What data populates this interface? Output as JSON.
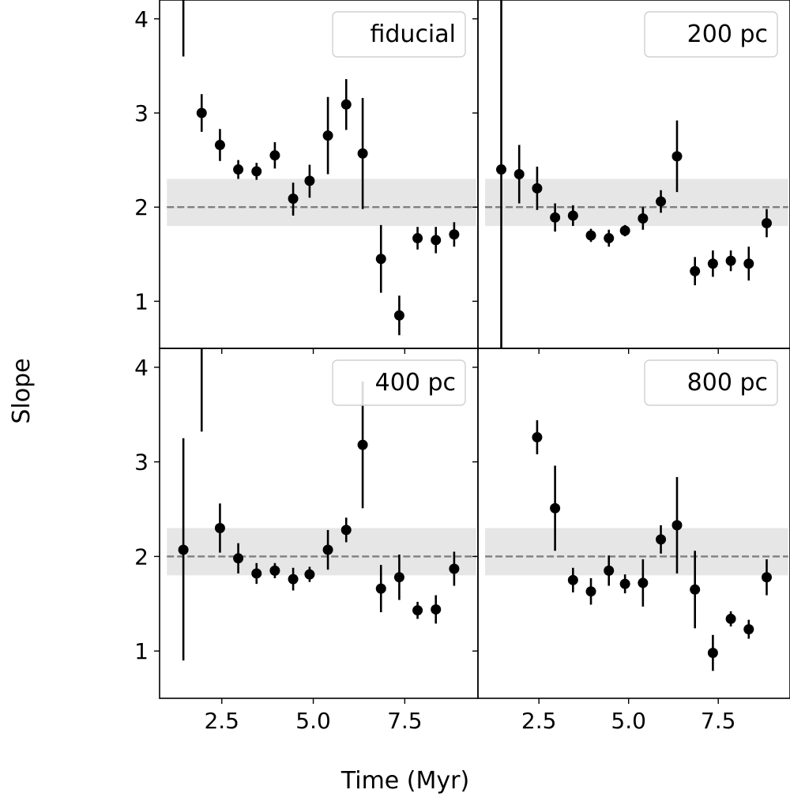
{
  "figure": {
    "ylabel": "Slope",
    "xlabel": "Time (Myr)"
  },
  "chart_data": [
    {
      "type": "scatter",
      "legend": "fiducial",
      "legend_position": "top-right",
      "xlim": [
        0.8,
        9.5
      ],
      "ylim": [
        0.5,
        4.2
      ],
      "xticks": [
        2.5,
        5.0,
        7.5
      ],
      "xtick_labels": [
        "2.5",
        "5.0",
        "7.5"
      ],
      "yticks": [
        1,
        2,
        3,
        4
      ],
      "ytick_labels": [
        "1",
        "2",
        "3",
        "4"
      ],
      "reference_line": 2.0,
      "band": [
        1.8,
        2.3
      ],
      "points": [
        {
          "x": 1.45,
          "y": 4.6,
          "ylo": 3.6,
          "yhi": 5.6
        },
        {
          "x": 1.95,
          "y": 3.0,
          "ylo": 2.8,
          "yhi": 3.2
        },
        {
          "x": 2.45,
          "y": 2.66,
          "ylo": 2.49,
          "yhi": 2.83
        },
        {
          "x": 2.95,
          "y": 2.4,
          "ylo": 2.3,
          "yhi": 2.5
        },
        {
          "x": 3.45,
          "y": 2.38,
          "ylo": 2.29,
          "yhi": 2.47
        },
        {
          "x": 3.95,
          "y": 2.55,
          "ylo": 2.41,
          "yhi": 2.69
        },
        {
          "x": 4.45,
          "y": 2.09,
          "ylo": 1.91,
          "yhi": 2.26
        },
        {
          "x": 4.9,
          "y": 2.28,
          "ylo": 2.1,
          "yhi": 2.45
        },
        {
          "x": 5.4,
          "y": 2.76,
          "ylo": 2.35,
          "yhi": 3.17
        },
        {
          "x": 5.9,
          "y": 3.09,
          "ylo": 2.82,
          "yhi": 3.36
        },
        {
          "x": 6.35,
          "y": 2.57,
          "ylo": 1.98,
          "yhi": 3.16
        },
        {
          "x": 6.85,
          "y": 1.45,
          "ylo": 1.09,
          "yhi": 1.81
        },
        {
          "x": 7.35,
          "y": 0.85,
          "ylo": 0.64,
          "yhi": 1.06
        },
        {
          "x": 7.85,
          "y": 1.67,
          "ylo": 1.55,
          "yhi": 1.79
        },
        {
          "x": 8.35,
          "y": 1.65,
          "ylo": 1.51,
          "yhi": 1.79
        },
        {
          "x": 8.85,
          "y": 1.71,
          "ylo": 1.58,
          "yhi": 1.84
        }
      ]
    },
    {
      "type": "scatter",
      "legend": "200 pc",
      "legend_position": "top-right",
      "xlim": [
        0.8,
        9.5
      ],
      "ylim": [
        0.5,
        4.2
      ],
      "xticks": [
        2.5,
        5.0,
        7.5
      ],
      "xtick_labels": [
        "2.5",
        "5.0",
        "7.5"
      ],
      "yticks": [
        1,
        2,
        3,
        4
      ],
      "ytick_labels": [],
      "reference_line": 2.0,
      "band": [
        1.8,
        2.3
      ],
      "points": [
        {
          "x": 1.45,
          "y": 2.4,
          "ylo": -1.0,
          "yhi": 6.0
        },
        {
          "x": 1.95,
          "y": 2.35,
          "ylo": 2.04,
          "yhi": 2.66
        },
        {
          "x": 2.45,
          "y": 2.2,
          "ylo": 1.97,
          "yhi": 2.43
        },
        {
          "x": 2.95,
          "y": 1.89,
          "ylo": 1.74,
          "yhi": 2.04
        },
        {
          "x": 3.45,
          "y": 1.91,
          "ylo": 1.8,
          "yhi": 2.02
        },
        {
          "x": 3.95,
          "y": 1.7,
          "ylo": 1.63,
          "yhi": 1.77
        },
        {
          "x": 4.45,
          "y": 1.67,
          "ylo": 1.58,
          "yhi": 1.76
        },
        {
          "x": 4.9,
          "y": 1.75,
          "ylo": 1.69,
          "yhi": 1.81
        },
        {
          "x": 5.4,
          "y": 1.88,
          "ylo": 1.76,
          "yhi": 2.0
        },
        {
          "x": 5.9,
          "y": 2.06,
          "ylo": 1.94,
          "yhi": 2.18
        },
        {
          "x": 6.35,
          "y": 2.54,
          "ylo": 2.16,
          "yhi": 2.92
        },
        {
          "x": 6.85,
          "y": 1.32,
          "ylo": 1.17,
          "yhi": 1.47
        },
        {
          "x": 7.35,
          "y": 1.4,
          "ylo": 1.26,
          "yhi": 1.54
        },
        {
          "x": 7.85,
          "y": 1.43,
          "ylo": 1.32,
          "yhi": 1.54
        },
        {
          "x": 8.35,
          "y": 1.4,
          "ylo": 1.22,
          "yhi": 1.58
        },
        {
          "x": 8.85,
          "y": 1.83,
          "ylo": 1.68,
          "yhi": 1.98
        }
      ]
    },
    {
      "type": "scatter",
      "legend": "400 pc",
      "legend_position": "top-right",
      "xlim": [
        0.8,
        9.5
      ],
      "ylim": [
        0.5,
        4.2
      ],
      "xticks": [
        2.5,
        5.0,
        7.5
      ],
      "xtick_labels": [
        "2.5",
        "5.0",
        "7.5"
      ],
      "yticks": [
        1,
        2,
        3,
        4
      ],
      "ytick_labels": [
        "1",
        "2",
        "3",
        "4"
      ],
      "reference_line": 2.0,
      "band": [
        1.8,
        2.3
      ],
      "points": [
        {
          "x": 1.45,
          "y": 2.07,
          "ylo": 0.9,
          "yhi": 3.25
        },
        {
          "x": 1.95,
          "y": 4.6,
          "ylo": 3.32,
          "yhi": 5.6
        },
        {
          "x": 2.45,
          "y": 2.3,
          "ylo": 2.04,
          "yhi": 2.56
        },
        {
          "x": 2.95,
          "y": 1.98,
          "ylo": 1.82,
          "yhi": 2.14
        },
        {
          "x": 3.45,
          "y": 1.82,
          "ylo": 1.71,
          "yhi": 1.93
        },
        {
          "x": 3.95,
          "y": 1.85,
          "ylo": 1.77,
          "yhi": 1.93
        },
        {
          "x": 4.45,
          "y": 1.76,
          "ylo": 1.64,
          "yhi": 1.88
        },
        {
          "x": 4.9,
          "y": 1.81,
          "ylo": 1.73,
          "yhi": 1.89
        },
        {
          "x": 5.4,
          "y": 2.07,
          "ylo": 1.86,
          "yhi": 2.28
        },
        {
          "x": 5.9,
          "y": 2.28,
          "ylo": 2.15,
          "yhi": 2.41
        },
        {
          "x": 6.35,
          "y": 3.18,
          "ylo": 2.51,
          "yhi": 3.85
        },
        {
          "x": 6.85,
          "y": 1.66,
          "ylo": 1.41,
          "yhi": 1.91
        },
        {
          "x": 7.35,
          "y": 1.78,
          "ylo": 1.54,
          "yhi": 2.02
        },
        {
          "x": 7.85,
          "y": 1.43,
          "ylo": 1.34,
          "yhi": 1.52
        },
        {
          "x": 8.35,
          "y": 1.44,
          "ylo": 1.29,
          "yhi": 1.59
        },
        {
          "x": 8.85,
          "y": 1.87,
          "ylo": 1.69,
          "yhi": 2.05
        }
      ]
    },
    {
      "type": "scatter",
      "legend": "800 pc",
      "legend_position": "top-right",
      "xlim": [
        0.8,
        9.5
      ],
      "ylim": [
        0.5,
        4.2
      ],
      "xticks": [
        2.5,
        5.0,
        7.5
      ],
      "xtick_labels": [
        "2.5",
        "5.0",
        "7.5"
      ],
      "yticks": [
        1,
        2,
        3,
        4
      ],
      "ytick_labels": [],
      "reference_line": 2.0,
      "band": [
        1.8,
        2.3
      ],
      "points": [
        {
          "x": 2.45,
          "y": 3.26,
          "ylo": 3.08,
          "yhi": 3.44
        },
        {
          "x": 2.95,
          "y": 2.51,
          "ylo": 2.06,
          "yhi": 2.96
        },
        {
          "x": 3.45,
          "y": 1.75,
          "ylo": 1.62,
          "yhi": 1.88
        },
        {
          "x": 3.95,
          "y": 1.63,
          "ylo": 1.49,
          "yhi": 1.77
        },
        {
          "x": 4.45,
          "y": 1.85,
          "ylo": 1.69,
          "yhi": 2.01
        },
        {
          "x": 4.9,
          "y": 1.71,
          "ylo": 1.61,
          "yhi": 1.81
        },
        {
          "x": 5.4,
          "y": 1.72,
          "ylo": 1.47,
          "yhi": 1.97
        },
        {
          "x": 5.9,
          "y": 2.18,
          "ylo": 2.03,
          "yhi": 2.33
        },
        {
          "x": 6.35,
          "y": 2.33,
          "ylo": 1.82,
          "yhi": 2.84
        },
        {
          "x": 6.85,
          "y": 1.65,
          "ylo": 1.24,
          "yhi": 2.06
        },
        {
          "x": 7.35,
          "y": 0.98,
          "ylo": 0.79,
          "yhi": 1.17
        },
        {
          "x": 7.85,
          "y": 1.34,
          "ylo": 1.26,
          "yhi": 1.42
        },
        {
          "x": 8.35,
          "y": 1.23,
          "ylo": 1.13,
          "yhi": 1.33
        },
        {
          "x": 8.85,
          "y": 1.78,
          "ylo": 1.59,
          "yhi": 1.97
        }
      ]
    }
  ]
}
